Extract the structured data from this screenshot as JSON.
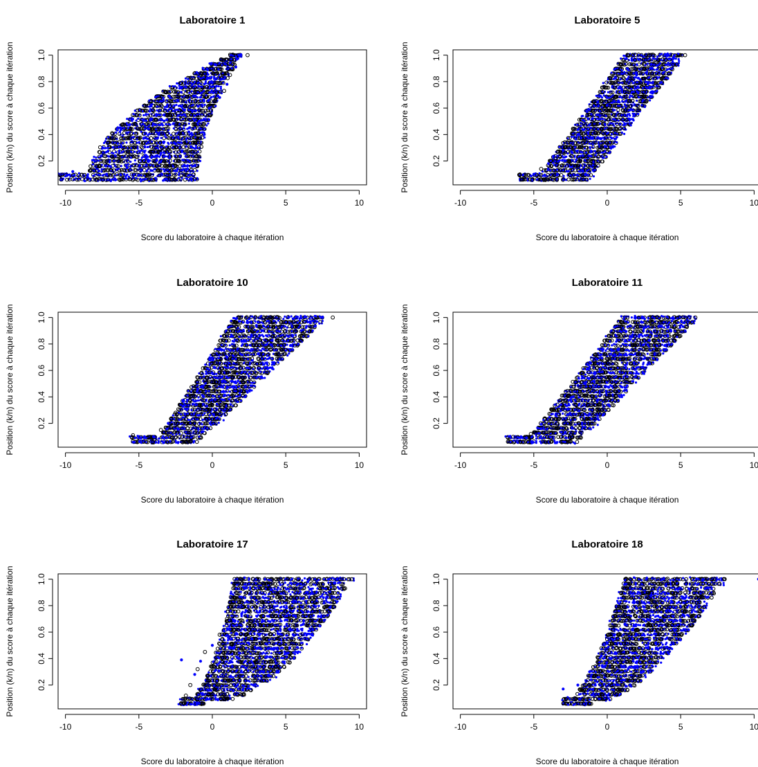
{
  "chart_data": [
    {
      "type": "scatter",
      "title": "Laboratoire 1",
      "xlabel": "Score du laboratoire à chaque itération",
      "ylabel": "Position (k/n) du score à chaque itération",
      "xlim": [
        -10.5,
        10.5
      ],
      "ylim": [
        0.02,
        1.04
      ],
      "xticks": [
        "-10",
        "-5",
        "0",
        "5",
        "10"
      ],
      "yticks": [
        "0.2",
        "0.4",
        "0.6",
        "0.8",
        "1.0"
      ],
      "series": [
        {
          "marker": "open-circle",
          "color": "#000000",
          "values": [
            [
              -10.3,
              0.06
            ],
            [
              -9.1,
              0.06
            ],
            [
              -8.0,
              0.07
            ],
            [
              -6.5,
              0.1
            ],
            [
              -5.2,
              0.13
            ],
            [
              -4.0,
              0.2
            ],
            [
              -3.0,
              0.29
            ],
            [
              -2.0,
              0.37
            ],
            [
              -1.2,
              0.45
            ],
            [
              -0.5,
              0.55
            ],
            [
              0.2,
              0.66
            ],
            [
              0.8,
              0.73
            ],
            [
              1.2,
              0.85
            ],
            [
              2.4,
              1.0
            ]
          ]
        },
        {
          "marker": "filled-dot",
          "color": "#0000ff",
          "values": [
            [
              -9.5,
              0.12
            ],
            [
              -8.5,
              0.08
            ],
            [
              -7.2,
              0.1
            ],
            [
              -5.8,
              0.15
            ],
            [
              -4.5,
              0.22
            ],
            [
              -3.5,
              0.26
            ],
            [
              -2.5,
              0.33
            ],
            [
              -1.6,
              0.42
            ],
            [
              -0.9,
              0.5
            ],
            [
              -0.2,
              0.6
            ],
            [
              0.5,
              0.68
            ],
            [
              1.0,
              0.78
            ],
            [
              1.6,
              0.91
            ]
          ]
        }
      ],
      "cloud": {
        "x_at_min": [
          -8.5,
          -1.0
        ],
        "x_at_max": [
          1.2,
          2.0
        ],
        "curve": 1.8,
        "low_tail": [
          -10.5,
          -7.2
        ]
      }
    },
    {
      "type": "scatter",
      "title": "Laboratoire 5",
      "xlabel": "Score du laboratoire à chaque itération",
      "ylabel": "Position (k/n) du score à chaque itération",
      "xlim": [
        -10.5,
        10.5
      ],
      "ylim": [
        0.02,
        1.04
      ],
      "xticks": [
        "-10",
        "-5",
        "0",
        "5",
        "10"
      ],
      "yticks": [
        "0.2",
        "0.4",
        "0.6",
        "0.8",
        "1.0"
      ],
      "series": [
        {
          "marker": "open-circle",
          "color": "#000000",
          "values": [
            [
              -5.8,
              0.06
            ],
            [
              -4.5,
              0.14
            ],
            [
              -3.5,
              0.22
            ],
            [
              -2.5,
              0.34
            ],
            [
              -1.5,
              0.47
            ],
            [
              -0.5,
              0.58
            ],
            [
              0.5,
              0.68
            ],
            [
              1.5,
              0.8
            ],
            [
              2.5,
              0.9
            ],
            [
              3.5,
              0.96
            ],
            [
              5.3,
              1.0
            ]
          ]
        },
        {
          "marker": "filled-dot",
          "color": "#0000ff",
          "values": [
            [
              -5.0,
              0.1
            ],
            [
              -4.0,
              0.18
            ],
            [
              -3.0,
              0.28
            ],
            [
              -2.0,
              0.4
            ],
            [
              -1.0,
              0.52
            ],
            [
              0.0,
              0.62
            ],
            [
              1.0,
              0.74
            ],
            [
              2.0,
              0.85
            ],
            [
              3.0,
              0.93
            ],
            [
              4.5,
              0.98
            ]
          ]
        }
      ],
      "cloud": {
        "x_at_min": [
          -4.8,
          -1.3
        ],
        "x_at_max": [
          1.2,
          5.3
        ],
        "curve": 1.0,
        "low_tail": [
          -6.0,
          -4.5
        ]
      }
    },
    {
      "type": "scatter",
      "title": "Laboratoire 10",
      "xlabel": "Score du laboratoire à chaque itération",
      "ylabel": "Position (k/n) du score à chaque itération",
      "xlim": [
        -10.5,
        10.5
      ],
      "ylim": [
        0.02,
        1.04
      ],
      "xticks": [
        "-10",
        "-5",
        "0",
        "5",
        "10"
      ],
      "yticks": [
        "0.2",
        "0.4",
        "0.6",
        "0.8",
        "1.0"
      ],
      "series": [
        {
          "marker": "open-circle",
          "color": "#000000",
          "values": [
            [
              -5.4,
              0.11
            ],
            [
              -4.5,
              0.06
            ],
            [
              -3.5,
              0.15
            ],
            [
              -2.5,
              0.28
            ],
            [
              -1.5,
              0.4
            ],
            [
              -0.5,
              0.53
            ],
            [
              0.5,
              0.66
            ],
            [
              1.5,
              0.78
            ],
            [
              2.5,
              0.9
            ],
            [
              3.5,
              0.98
            ],
            [
              8.2,
              1.0
            ]
          ]
        },
        {
          "marker": "filled-dot",
          "color": "#0000ff",
          "values": [
            [
              -4.0,
              0.1
            ],
            [
              -3.0,
              0.2
            ],
            [
              -2.0,
              0.33
            ],
            [
              -1.0,
              0.46
            ],
            [
              0.0,
              0.58
            ],
            [
              1.0,
              0.7
            ],
            [
              2.0,
              0.82
            ],
            [
              3.0,
              0.94
            ],
            [
              5.5,
              0.99
            ],
            [
              7.5,
              1.0
            ]
          ]
        }
      ],
      "cloud": {
        "x_at_min": [
          -3.8,
          -1.0
        ],
        "x_at_max": [
          1.5,
          7.8
        ],
        "curve": 1.0,
        "low_tail": [
          -5.5,
          -3.0
        ]
      }
    },
    {
      "type": "scatter",
      "title": "Laboratoire 11",
      "xlabel": "Score du laboratoire à chaque itération",
      "ylabel": "Position (k/n) du score à chaque itération",
      "xlim": [
        -10.5,
        10.5
      ],
      "ylim": [
        0.02,
        1.04
      ],
      "xticks": [
        "-10",
        "-5",
        "0",
        "5",
        "10"
      ],
      "yticks": [
        "0.2",
        "0.4",
        "0.6",
        "0.8",
        "1.0"
      ],
      "series": [
        {
          "marker": "open-circle",
          "color": "#000000",
          "values": [
            [
              -6.6,
              0.06
            ],
            [
              -5.2,
              0.12
            ],
            [
              -4.0,
              0.2
            ],
            [
              -3.0,
              0.32
            ],
            [
              -2.0,
              0.44
            ],
            [
              -1.0,
              0.55
            ],
            [
              0.0,
              0.66
            ],
            [
              1.0,
              0.78
            ],
            [
              2.0,
              0.88
            ],
            [
              3.0,
              0.96
            ],
            [
              6.0,
              1.0
            ]
          ]
        },
        {
          "marker": "filled-dot",
          "color": "#0000ff",
          "values": [
            [
              -5.5,
              0.09
            ],
            [
              -4.5,
              0.16
            ],
            [
              -3.5,
              0.26
            ],
            [
              -2.5,
              0.38
            ],
            [
              -1.5,
              0.5
            ],
            [
              -0.5,
              0.61
            ],
            [
              0.5,
              0.72
            ],
            [
              1.5,
              0.83
            ],
            [
              2.5,
              0.92
            ],
            [
              4.5,
              0.99
            ]
          ]
        }
      ],
      "cloud": {
        "x_at_min": [
          -5.5,
          -2.0
        ],
        "x_at_max": [
          1.0,
          6.2
        ],
        "curve": 1.0,
        "low_tail": [
          -6.8,
          -5.0
        ]
      }
    },
    {
      "type": "scatter",
      "title": "Laboratoire 17",
      "xlabel": "Score du laboratoire à chaque itération",
      "ylabel": "Position (k/n) du score à chaque itération",
      "xlim": [
        -10.5,
        10.5
      ],
      "ylim": [
        0.02,
        1.04
      ],
      "xticks": [
        "-10",
        "-5",
        "0",
        "5",
        "10"
      ],
      "yticks": [
        "0.2",
        "0.4",
        "0.6",
        "0.8",
        "1.0"
      ],
      "series": [
        {
          "marker": "open-circle",
          "color": "#000000",
          "values": [
            [
              -1.8,
              0.12
            ],
            [
              -1.5,
              0.2
            ],
            [
              -1.0,
              0.32
            ],
            [
              -0.5,
              0.45
            ],
            [
              0.5,
              0.58
            ],
            [
              1.0,
              0.7
            ],
            [
              1.5,
              0.8
            ],
            [
              2.5,
              0.9
            ],
            [
              3.5,
              0.96
            ],
            [
              9.5,
              1.0
            ]
          ]
        },
        {
          "marker": "filled-dot",
          "color": "#0000ff",
          "values": [
            [
              -2.1,
              0.39
            ],
            [
              -1.2,
              0.28
            ],
            [
              -0.8,
              0.38
            ],
            [
              0.0,
              0.5
            ],
            [
              1.2,
              0.62
            ],
            [
              2.0,
              0.74
            ],
            [
              3.0,
              0.84
            ],
            [
              4.0,
              0.92
            ],
            [
              6.5,
              0.98
            ],
            [
              8.5,
              1.0
            ]
          ]
        }
      ],
      "cloud": {
        "x_at_min": [
          -2.0,
          -0.5
        ],
        "x_at_max": [
          1.5,
          9.5
        ],
        "curve": 0.5,
        "low_tail": [
          -2.2,
          -1.0
        ]
      }
    },
    {
      "type": "scatter",
      "title": "Laboratoire 18",
      "xlabel": "Score du laboratoire à chaque itération",
      "ylabel": "Position (k/n) du score à chaque itération",
      "xlim": [
        -10.5,
        10.5
      ],
      "ylim": [
        0.02,
        1.04
      ],
      "xticks": [
        "-10",
        "-5",
        "0",
        "5",
        "10"
      ],
      "yticks": [
        "0.2",
        "0.4",
        "0.6",
        "0.8",
        "1.0"
      ],
      "series": [
        {
          "marker": "open-circle",
          "color": "#000000",
          "values": [
            [
              -2.2,
              0.1
            ],
            [
              -1.8,
              0.06
            ],
            [
              -1.5,
              0.2
            ],
            [
              -0.8,
              0.34
            ],
            [
              0.0,
              0.46
            ],
            [
              0.8,
              0.58
            ],
            [
              1.5,
              0.7
            ],
            [
              2.2,
              0.82
            ],
            [
              3.0,
              0.9
            ],
            [
              4.5,
              0.97
            ],
            [
              8.0,
              1.0
            ]
          ]
        },
        {
          "marker": "filled-dot",
          "color": "#0000ff",
          "values": [
            [
              -3.0,
              0.17
            ],
            [
              -2.0,
              0.2
            ],
            [
              -1.2,
              0.3
            ],
            [
              -0.4,
              0.42
            ],
            [
              0.4,
              0.54
            ],
            [
              1.2,
              0.66
            ],
            [
              2.0,
              0.78
            ],
            [
              3.0,
              0.88
            ],
            [
              4.0,
              0.95
            ],
            [
              6.5,
              0.99
            ],
            [
              10.3,
              1.0
            ]
          ]
        }
      ],
      "cloud": {
        "x_at_min": [
          -3.0,
          -1.0
        ],
        "x_at_max": [
          1.2,
          8.0
        ],
        "curve": 0.6,
        "low_tail": [
          -3.0,
          -1.5
        ]
      }
    }
  ]
}
